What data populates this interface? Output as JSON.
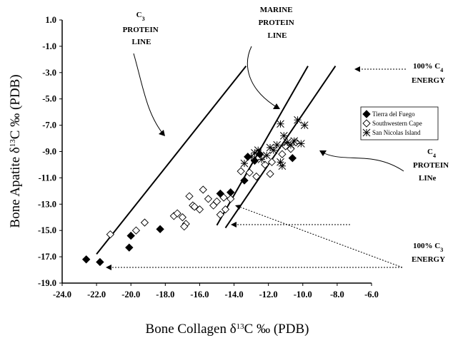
{
  "chart_data": {
    "type": "scatter",
    "xlabel": "Bone Collagen δ13C ‰ (PDB)",
    "ylabel": "Bone Apatite δ13C ‰ (PDB)",
    "xlim": [
      -24.0,
      -6.0
    ],
    "ylim": [
      -19.0,
      1.0
    ],
    "x_ticks": [
      "-24.0",
      "-22.0",
      "-20.0",
      "-18.0",
      "-16.0",
      "-14.0",
      "-12.0",
      "-10.0",
      "-8.0",
      "-6.0"
    ],
    "y_ticks": [
      "1.0",
      "-1.0",
      "-3.0",
      "-5.0",
      "-7.0",
      "-9.0",
      "-11.0",
      "-13.0",
      "-15.0",
      "-17.0",
      "-19.0"
    ],
    "grid": false,
    "legend_position": "right",
    "series": [
      {
        "name": "Tierra del Fuego",
        "marker": "filled-diamond",
        "color": "#000000",
        "points": [
          [
            -22.6,
            -17.2
          ],
          [
            -21.8,
            -17.4
          ],
          [
            -20.0,
            -15.4
          ],
          [
            -20.1,
            -16.3
          ],
          [
            -18.3,
            -14.9
          ],
          [
            -14.8,
            -12.2
          ],
          [
            -14.2,
            -12.1
          ],
          [
            -13.4,
            -11.2
          ],
          [
            -13.2,
            -9.4
          ],
          [
            -12.8,
            -9.7
          ],
          [
            -12.5,
            -9.2
          ],
          [
            -10.6,
            -9.5
          ]
        ]
      },
      {
        "name": "Southwestern Cape",
        "marker": "open-diamond",
        "color": "#000000",
        "points": [
          [
            -21.2,
            -15.3
          ],
          [
            -19.7,
            -15.0
          ],
          [
            -19.2,
            -14.4
          ],
          [
            -17.5,
            -13.9
          ],
          [
            -17.3,
            -13.7
          ],
          [
            -17.0,
            -14.0
          ],
          [
            -16.8,
            -14.5
          ],
          [
            -16.9,
            -14.7
          ],
          [
            -16.4,
            -13.1
          ],
          [
            -16.6,
            -12.4
          ],
          [
            -16.3,
            -13.2
          ],
          [
            -16.0,
            -13.4
          ],
          [
            -15.8,
            -11.9
          ],
          [
            -15.5,
            -12.6
          ],
          [
            -15.2,
            -13.1
          ],
          [
            -15.0,
            -12.8
          ],
          [
            -14.8,
            -13.8
          ],
          [
            -14.5,
            -13.4
          ],
          [
            -14.6,
            -12.5
          ],
          [
            -14.2,
            -12.6
          ],
          [
            -13.6,
            -10.5
          ],
          [
            -13.1,
            -10.6
          ],
          [
            -12.7,
            -10.9
          ],
          [
            -12.2,
            -10.0
          ],
          [
            -11.9,
            -10.7
          ],
          [
            -11.8,
            -9.8
          ],
          [
            -11.2,
            -9.2
          ],
          [
            -11.0,
            -8.6
          ],
          [
            -10.7,
            -8.8
          ],
          [
            -10.4,
            -8.3
          ]
        ]
      },
      {
        "name": "San Nicolas Island",
        "marker": "asterisk",
        "color": "#000000",
        "points": [
          [
            -13.4,
            -9.9
          ],
          [
            -13.0,
            -9.4
          ],
          [
            -12.8,
            -9.1
          ],
          [
            -12.6,
            -8.9
          ],
          [
            -12.4,
            -9.6
          ],
          [
            -12.1,
            -9.3
          ],
          [
            -11.9,
            -8.7
          ],
          [
            -11.7,
            -8.9
          ],
          [
            -11.5,
            -8.5
          ],
          [
            -11.3,
            -9.8
          ],
          [
            -11.2,
            -10.1
          ],
          [
            -11.1,
            -7.8
          ],
          [
            -10.9,
            -8.3
          ],
          [
            -10.7,
            -8.5
          ],
          [
            -10.5,
            -8.2
          ],
          [
            -10.3,
            -6.6
          ],
          [
            -10.1,
            -8.4
          ],
          [
            -9.9,
            -7.0
          ],
          [
            -11.3,
            -6.9
          ]
        ]
      }
    ],
    "lines": [
      {
        "name": "C3 protein line",
        "from": [
          -22.0,
          -16.8
        ],
        "to": [
          -13.3,
          -2.5
        ]
      },
      {
        "name": "marine protein line",
        "from": [
          -15.0,
          -14.6
        ],
        "to": [
          -9.7,
          -2.5
        ]
      },
      {
        "name": "C4 protein line",
        "from": [
          -14.5,
          -14.8
        ],
        "to": [
          -8.1,
          -2.5
        ]
      }
    ],
    "annotations": {
      "c3_protein": {
        "sub": "3",
        "line2": "PROTEIN",
        "line3": "LINE"
      },
      "marine_protein": {
        "line1": "MARINE",
        "line2": "PROTEIN",
        "line3": "LINE"
      },
      "c4_energy": {
        "line1": "100% C",
        "sub": "4",
        "line2": "ENERGY"
      },
      "c4_protein": {
        "sub": "4",
        "line2": "PROTEIN",
        "line3": "LINe"
      },
      "c3_energy": {
        "line1": "100% C",
        "sub": "3",
        "line2": "ENERGY"
      }
    },
    "c_letter": "C",
    "xlabel_parts": {
      "pre": "Bone Collagen δ",
      "sup": "13",
      "post": "C ‰ (PDB)"
    },
    "ylabel_parts": {
      "pre": "Bone Apatite δ",
      "sup": "13",
      "post": "C ‰ (PDB)"
    }
  }
}
